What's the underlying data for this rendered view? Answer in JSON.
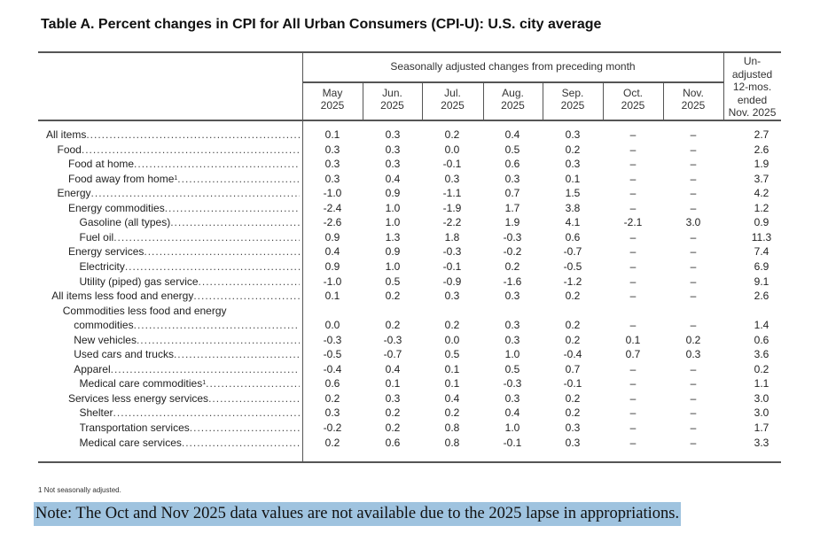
{
  "title": "Table A. Percent changes in CPI for All Urban Consumers (CPI-U): U.S. city average",
  "header": {
    "group_label": "Seasonally adjusted changes from preceding month",
    "months": [
      [
        "May",
        "2025"
      ],
      [
        "Jun.",
        "2025"
      ],
      [
        "Jul.",
        "2025"
      ],
      [
        "Aug.",
        "2025"
      ],
      [
        "Sep.",
        "2025"
      ],
      [
        "Oct.",
        "2025"
      ],
      [
        "Nov.",
        "2025"
      ]
    ],
    "unadjusted": [
      "Un-",
      "adjusted",
      "12-mos.",
      "ended",
      "Nov. 2025"
    ]
  },
  "rows": [
    {
      "label": "All items",
      "indent": 0,
      "values": [
        "0.1",
        "0.3",
        "0.2",
        "0.4",
        "0.3",
        "–",
        "–",
        "2.7"
      ]
    },
    {
      "label": "Food",
      "indent": 1,
      "values": [
        "0.3",
        "0.3",
        "0.0",
        "0.5",
        "0.2",
        "–",
        "–",
        "2.6"
      ]
    },
    {
      "label": "Food at home",
      "indent": 2,
      "values": [
        "0.3",
        "0.3",
        "-0.1",
        "0.6",
        "0.3",
        "–",
        "–",
        "1.9"
      ]
    },
    {
      "label": "Food away from home",
      "footnote": "1",
      "indent": 2,
      "values": [
        "0.3",
        "0.4",
        "0.3",
        "0.3",
        "0.1",
        "–",
        "–",
        "3.7"
      ]
    },
    {
      "label": "Energy",
      "indent": 1,
      "values": [
        "-1.0",
        "0.9",
        "-1.1",
        "0.7",
        "1.5",
        "–",
        "–",
        "4.2"
      ]
    },
    {
      "label": "Energy commodities",
      "indent": 2,
      "values": [
        "-2.4",
        "1.0",
        "-1.9",
        "1.7",
        "3.8",
        "–",
        "–",
        "1.2"
      ]
    },
    {
      "label": "Gasoline (all types)",
      "indent": 3,
      "values": [
        "-2.6",
        "1.0",
        "-2.2",
        "1.9",
        "4.1",
        "-2.1",
        "3.0",
        "0.9"
      ]
    },
    {
      "label": "Fuel oil",
      "indent": 3,
      "values": [
        "0.9",
        "1.3",
        "1.8",
        "-0.3",
        "0.6",
        "–",
        "–",
        "11.3"
      ]
    },
    {
      "label": "Energy services",
      "indent": 2,
      "values": [
        "0.4",
        "0.9",
        "-0.3",
        "-0.2",
        "-0.7",
        "–",
        "–",
        "7.4"
      ]
    },
    {
      "label": "Electricity",
      "indent": 3,
      "values": [
        "0.9",
        "1.0",
        "-0.1",
        "0.2",
        "-0.5",
        "–",
        "–",
        "6.9"
      ]
    },
    {
      "label": "Utility (piped) gas service",
      "indent": 3,
      "values": [
        "-1.0",
        "0.5",
        "-0.9",
        "-1.6",
        "-1.2",
        "–",
        "–",
        "9.1"
      ]
    },
    {
      "label": "All items less food and energy",
      "indent": 0.5,
      "values": [
        "0.1",
        "0.2",
        "0.3",
        "0.3",
        "0.2",
        "–",
        "–",
        "2.6"
      ]
    },
    {
      "label": "Commodities less food and energy",
      "indent": 1.5,
      "heading": true
    },
    {
      "label": "commodities",
      "indent": 2.5,
      "values": [
        "0.0",
        "0.2",
        "0.2",
        "0.3",
        "0.2",
        "–",
        "–",
        "1.4"
      ]
    },
    {
      "label": "New vehicles",
      "indent": 2.5,
      "values": [
        "-0.3",
        "-0.3",
        "0.0",
        "0.3",
        "0.2",
        "0.1",
        "0.2",
        "0.6"
      ]
    },
    {
      "label": "Used cars and trucks",
      "indent": 2.5,
      "values": [
        "-0.5",
        "-0.7",
        "0.5",
        "1.0",
        "-0.4",
        "0.7",
        "0.3",
        "3.6"
      ]
    },
    {
      "label": "Apparel",
      "indent": 2.5,
      "values": [
        "-0.4",
        "0.4",
        "0.1",
        "0.5",
        "0.7",
        "–",
        "–",
        "0.2"
      ]
    },
    {
      "label": "Medical care commodities",
      "footnote": "1",
      "indent": 3,
      "values": [
        "0.6",
        "0.1",
        "0.1",
        "-0.3",
        "-0.1",
        "–",
        "–",
        "1.1"
      ]
    },
    {
      "label": "Services less energy services",
      "indent": 2,
      "values": [
        "0.2",
        "0.3",
        "0.4",
        "0.3",
        "0.2",
        "–",
        "–",
        "3.0"
      ]
    },
    {
      "label": "Shelter",
      "indent": 3,
      "values": [
        "0.3",
        "0.2",
        "0.2",
        "0.4",
        "0.2",
        "–",
        "–",
        "3.0"
      ]
    },
    {
      "label": "Transportation services",
      "indent": 3,
      "values": [
        "-0.2",
        "0.2",
        "0.8",
        "1.0",
        "0.3",
        "–",
        "–",
        "1.7"
      ]
    },
    {
      "label": "Medical care services",
      "indent": 3,
      "values": [
        "0.2",
        "0.6",
        "0.8",
        "-0.1",
        "0.3",
        "–",
        "–",
        "3.3"
      ]
    }
  ],
  "footnote": {
    "marker": "1",
    "text": "Not seasonally adjusted."
  },
  "note": "Note: The Oct and Nov 2025 data values are not available due to the 2025 lapse in appropriations.",
  "colors": {
    "note_highlight": "#9fc3df",
    "rule": "#555555"
  }
}
